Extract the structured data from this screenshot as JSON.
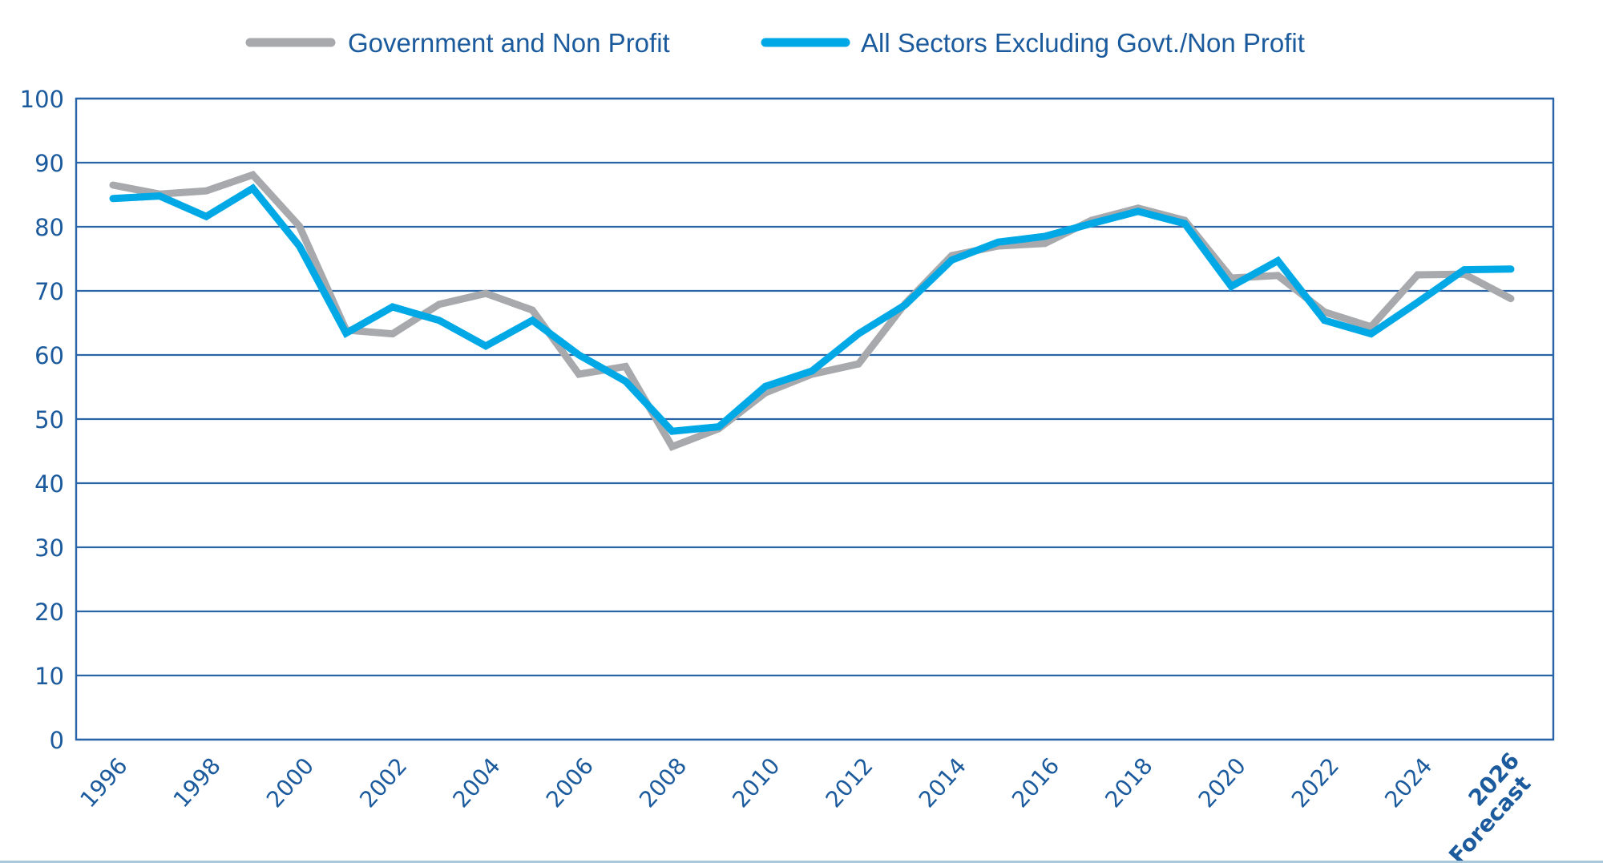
{
  "chart_data": {
    "type": "line",
    "title": "",
    "xlabel": "",
    "ylabel": "",
    "ylim": [
      0,
      100
    ],
    "yticks": [
      "0",
      "10",
      "20",
      "30",
      "40",
      "50",
      "60",
      "70",
      "80",
      "90",
      "100"
    ],
    "grid": true,
    "legend_position": "top-center",
    "x": [
      1996,
      1997,
      1998,
      1999,
      2000,
      2001,
      2002,
      2003,
      2004,
      2005,
      2006,
      2007,
      2008,
      2009,
      2010,
      2011,
      2012,
      2013,
      2014,
      2015,
      2016,
      2017,
      2018,
      2019,
      2020,
      2021,
      2022,
      2023,
      2024,
      2025,
      2026
    ],
    "xticks": [
      {
        "x": 1996,
        "label": "1996"
      },
      {
        "x": 1998,
        "label": "1998"
      },
      {
        "x": 2000,
        "label": "2000"
      },
      {
        "x": 2002,
        "label": "2002"
      },
      {
        "x": 2004,
        "label": "2004"
      },
      {
        "x": 2006,
        "label": "2006"
      },
      {
        "x": 2008,
        "label": "2008"
      },
      {
        "x": 2010,
        "label": "2010"
      },
      {
        "x": 2012,
        "label": "2012"
      },
      {
        "x": 2014,
        "label": "2014"
      },
      {
        "x": 2016,
        "label": "2016"
      },
      {
        "x": 2018,
        "label": "2018"
      },
      {
        "x": 2020,
        "label": "2020"
      },
      {
        "x": 2022,
        "label": "2022"
      },
      {
        "x": 2024,
        "label": "2024"
      },
      {
        "x": 2026,
        "label": "2026",
        "prefix": "Forecast"
      }
    ],
    "series": [
      {
        "name": "Government and Non Profit",
        "color": "#a7a9ac",
        "values": [
          86.5,
          85.1,
          85.6,
          88.1,
          80.1,
          63.9,
          63.3,
          67.9,
          69.6,
          67.0,
          57.0,
          58.2,
          45.7,
          48.5,
          54.1,
          57.0,
          58.6,
          68.0,
          75.5,
          77.0,
          77.4,
          81.0,
          82.9,
          81.0,
          72.0,
          72.4,
          66.7,
          64.4,
          72.5,
          72.6,
          68.8
        ]
      },
      {
        "name": "All Sectors Excluding Govt./Non Profit",
        "color": "#00a9e6",
        "values": [
          84.4,
          84.8,
          81.6,
          86.0,
          77.0,
          63.4,
          67.5,
          65.4,
          61.4,
          65.4,
          60.0,
          55.9,
          48.1,
          48.8,
          55.1,
          57.5,
          63.3,
          67.8,
          74.8,
          77.6,
          78.5,
          80.5,
          82.4,
          80.5,
          70.7,
          74.7,
          65.4,
          63.3,
          68.2,
          73.3,
          73.4
        ]
      }
    ]
  },
  "colors": {
    "axis": "#2a64a8",
    "grid": "#2a64a8",
    "text": "#1b5a9c"
  }
}
